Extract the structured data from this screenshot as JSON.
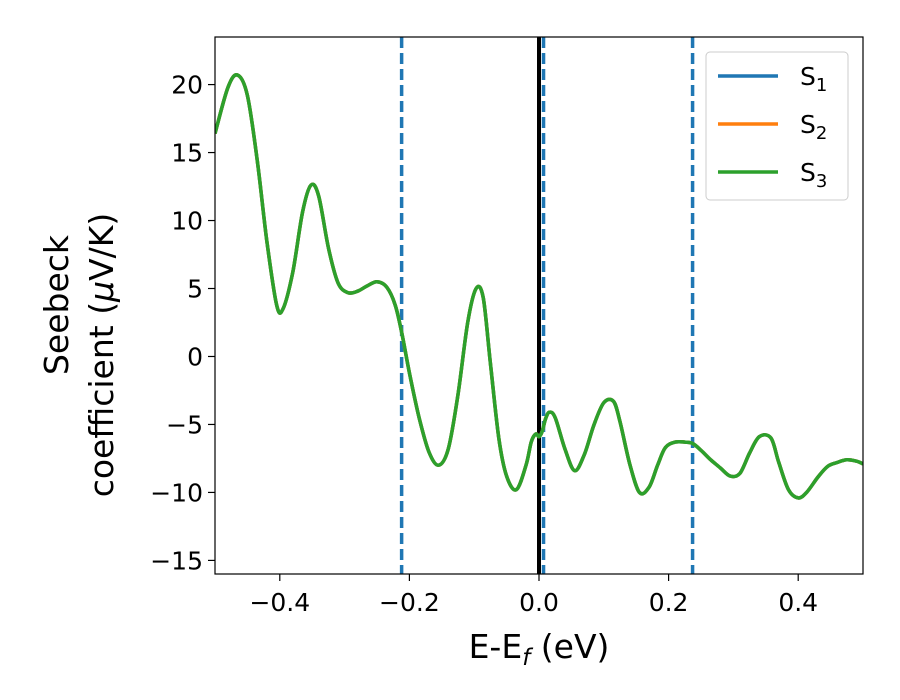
{
  "chart_data": {
    "type": "line",
    "title": "",
    "xlabel": {
      "main": "E-E",
      "sub": "f",
      "suffix": " (eV)"
    },
    "ylabel": {
      "line1": "Seebeck",
      "line2_prefix": "coefficient  (",
      "mu": "μ",
      "line2_suffix": "V/K)"
    },
    "xlim": [
      -0.5,
      0.5
    ],
    "ylim": [
      -16,
      23.5
    ],
    "xticks": [
      -0.4,
      -0.2,
      0.0,
      0.2,
      0.4
    ],
    "xtick_labels": [
      "−0.4",
      "−0.2",
      "0.0",
      "0.2",
      "0.4"
    ],
    "yticks": [
      -15,
      -10,
      -5,
      0,
      5,
      10,
      15,
      20
    ],
    "ytick_labels": [
      "−15",
      "−10",
      "−5",
      "0",
      "5",
      "10",
      "15",
      "20"
    ],
    "grid": false,
    "legend_position": "top-right",
    "vlines": [
      {
        "x": -0.212,
        "style": "dashed",
        "color": "#1f77b4"
      },
      {
        "x": 0.007,
        "style": "dashed",
        "color": "#1f77b4"
      },
      {
        "x": 0.237,
        "style": "dashed",
        "color": "#1f77b4"
      },
      {
        "x": 0.0,
        "style": "solid",
        "color": "#000000"
      }
    ],
    "x": [
      -0.5,
      -0.48,
      -0.465,
      -0.45,
      -0.435,
      -0.42,
      -0.405,
      -0.395,
      -0.38,
      -0.365,
      -0.352,
      -0.34,
      -0.325,
      -0.31,
      -0.295,
      -0.28,
      -0.265,
      -0.25,
      -0.235,
      -0.222,
      -0.212,
      -0.2,
      -0.185,
      -0.17,
      -0.155,
      -0.14,
      -0.125,
      -0.11,
      -0.097,
      -0.086,
      -0.075,
      -0.062,
      -0.05,
      -0.035,
      -0.02,
      -0.012,
      -0.005,
      0.0,
      0.005,
      0.01,
      0.016,
      0.025,
      0.04,
      0.055,
      0.07,
      0.085,
      0.1,
      0.115,
      0.125,
      0.14,
      0.155,
      0.17,
      0.183,
      0.195,
      0.21,
      0.225,
      0.237,
      0.25,
      0.265,
      0.28,
      0.295,
      0.31,
      0.325,
      0.34,
      0.358,
      0.37,
      0.385,
      0.4,
      0.413,
      0.43,
      0.445,
      0.46,
      0.475,
      0.49,
      0.5
    ],
    "series": [
      {
        "name": "S",
        "name_sub": "1",
        "color": "#1f77b4",
        "y": [
          16.4,
          19.8,
          20.7,
          19.2,
          14.5,
          8.5,
          3.8,
          3.5,
          6.2,
          10.6,
          12.6,
          11.8,
          8.0,
          5.4,
          4.7,
          4.8,
          5.2,
          5.5,
          5.1,
          3.8,
          1.8,
          -1.2,
          -4.5,
          -7.0,
          -8.0,
          -6.8,
          -2.8,
          2.5,
          5.0,
          4.3,
          -0.5,
          -6.0,
          -8.8,
          -9.8,
          -8.0,
          -6.3,
          -5.7,
          -5.9,
          -5.5,
          -4.6,
          -4.1,
          -4.5,
          -6.8,
          -8.4,
          -7.2,
          -5.0,
          -3.4,
          -3.3,
          -4.8,
          -7.9,
          -10.0,
          -9.6,
          -8.0,
          -6.7,
          -6.3,
          -6.3,
          -6.4,
          -6.9,
          -7.6,
          -8.2,
          -8.8,
          -8.6,
          -7.1,
          -5.9,
          -6.0,
          -7.8,
          -9.8,
          -10.4,
          -10.0,
          -8.9,
          -8.1,
          -7.8,
          -7.6,
          -7.7,
          -7.9
        ]
      },
      {
        "name": "S",
        "name_sub": "2",
        "color": "#ff7f0e",
        "y": [
          16.4,
          19.8,
          20.7,
          19.2,
          14.5,
          8.5,
          3.8,
          3.5,
          6.2,
          10.6,
          12.6,
          11.8,
          8.0,
          5.4,
          4.7,
          4.8,
          5.2,
          5.5,
          5.1,
          3.8,
          1.8,
          -1.2,
          -4.5,
          -7.0,
          -8.0,
          -6.8,
          -2.8,
          2.5,
          5.0,
          4.3,
          -0.5,
          -6.0,
          -8.8,
          -9.8,
          -8.0,
          -6.3,
          -5.7,
          -5.9,
          -5.5,
          -4.6,
          -4.1,
          -4.5,
          -6.8,
          -8.4,
          -7.2,
          -5.0,
          -3.4,
          -3.3,
          -4.8,
          -7.9,
          -10.0,
          -9.6,
          -8.0,
          -6.7,
          -6.3,
          -6.3,
          -6.4,
          -6.9,
          -7.6,
          -8.2,
          -8.8,
          -8.6,
          -7.1,
          -5.9,
          -6.0,
          -7.8,
          -9.8,
          -10.4,
          -10.0,
          -8.9,
          -8.1,
          -7.8,
          -7.6,
          -7.7,
          -7.9
        ]
      },
      {
        "name": "S",
        "name_sub": "3",
        "color": "#2ca02c",
        "y": [
          16.4,
          19.8,
          20.7,
          19.2,
          14.5,
          8.5,
          3.8,
          3.5,
          6.2,
          10.6,
          12.6,
          11.8,
          8.0,
          5.4,
          4.7,
          4.8,
          5.2,
          5.5,
          5.1,
          3.8,
          1.8,
          -1.2,
          -4.5,
          -7.0,
          -8.0,
          -6.8,
          -2.8,
          2.5,
          5.0,
          4.3,
          -0.5,
          -6.0,
          -8.8,
          -9.8,
          -8.0,
          -6.3,
          -5.7,
          -5.9,
          -5.5,
          -4.6,
          -4.1,
          -4.5,
          -6.8,
          -8.4,
          -7.2,
          -5.0,
          -3.4,
          -3.3,
          -4.8,
          -7.9,
          -10.0,
          -9.6,
          -8.0,
          -6.7,
          -6.3,
          -6.3,
          -6.4,
          -6.9,
          -7.6,
          -8.2,
          -8.8,
          -8.6,
          -7.1,
          -5.9,
          -6.0,
          -7.8,
          -9.8,
          -10.4,
          -10.0,
          -8.9,
          -8.1,
          -7.8,
          -7.6,
          -7.7,
          -7.9
        ]
      }
    ]
  }
}
